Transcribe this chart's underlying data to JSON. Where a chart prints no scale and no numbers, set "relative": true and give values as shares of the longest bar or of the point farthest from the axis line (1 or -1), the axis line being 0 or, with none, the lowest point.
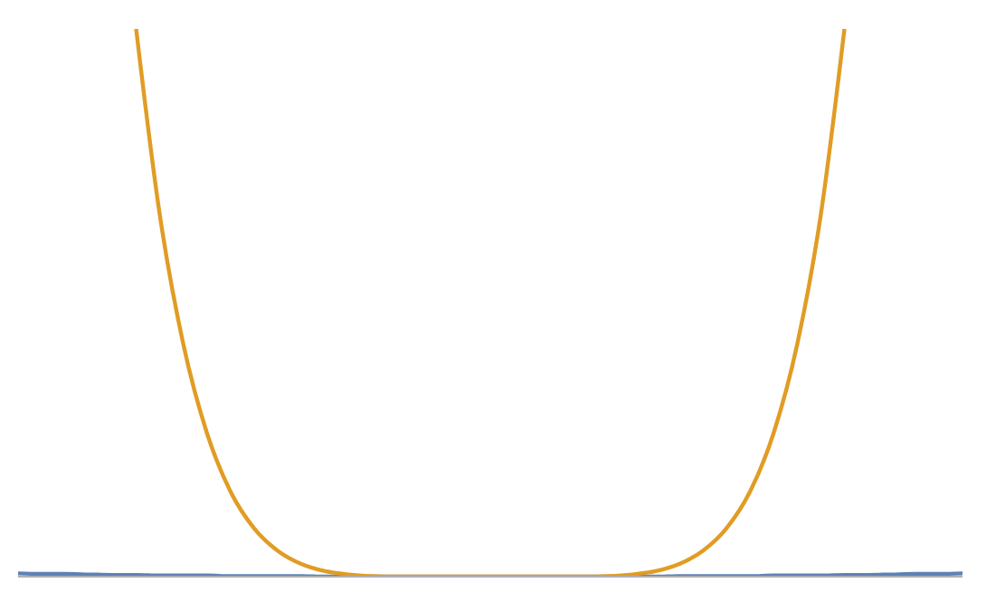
{
  "chart_data": {
    "type": "line",
    "relative": true,
    "categories": [
      null,
      null,
      null,
      null,
      null,
      null,
      null,
      null,
      null,
      null,
      null,
      null,
      null,
      null,
      null,
      null,
      null,
      null,
      null,
      null,
      null,
      null,
      null,
      null,
      null,
      null,
      null,
      null,
      null,
      null,
      null,
      null,
      null,
      null,
      null,
      null,
      null,
      null,
      null,
      null,
      null
    ],
    "series": [
      {
        "color": "#5e81b5",
        "values": [
          0.006,
          0.005,
          0.005,
          0.004,
          0.003,
          0.003,
          0.002,
          0.002,
          0.002,
          0.001,
          0.001,
          0.001,
          0.001,
          0,
          0,
          0,
          0,
          0,
          0,
          0,
          0,
          0,
          0,
          0,
          0,
          0,
          0,
          0,
          0.001,
          0.001,
          0.001,
          0.001,
          0.002,
          0.002,
          0.002,
          0.003,
          0.003,
          0.004,
          0.005,
          0.005,
          0.006
        ]
      },
      {
        "color": "#e19c24",
        "values": [
          null,
          null,
          null,
          null,
          null,
          1,
          0.661,
          0.424,
          0.262,
          0.155,
          0.088,
          0.047,
          0.023,
          0.01,
          0.004,
          0.001,
          0,
          0,
          0,
          0,
          0,
          0,
          0,
          0,
          0,
          0.001,
          0.004,
          0.01,
          0.023,
          0.047,
          0.088,
          0.155,
          0.262,
          0.424,
          0.661,
          1,
          null,
          null,
          null,
          null,
          null
        ]
      }
    ],
    "grid": false,
    "legend": false,
    "marker": "none",
    "line_style": "solid"
  }
}
